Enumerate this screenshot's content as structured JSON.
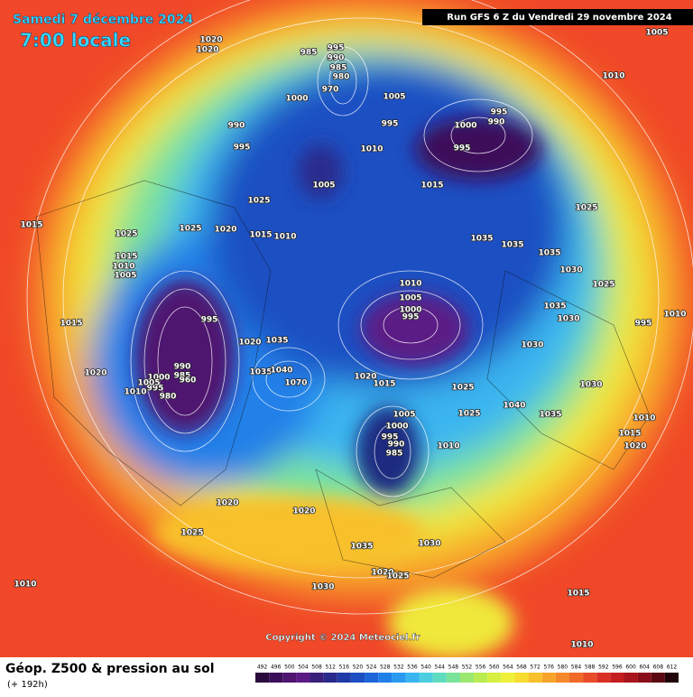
{
  "header": {
    "date": "Samedi 7 décembre 2024",
    "time": "7:00 locale",
    "run": "Run GFS 6 Z du Vendredi 29 novembre 2024"
  },
  "map": {
    "isobar_labels": [
      1020,
      1020,
      1005,
      985,
      995,
      990,
      985,
      980,
      970,
      1010,
      1000,
      1005,
      990,
      995,
      995,
      990,
      995,
      1000,
      1010,
      995,
      1005,
      1015,
      1025,
      1025,
      1015,
      1025,
      1025,
      1020,
      1015,
      1010,
      1035,
      1035,
      1035,
      1015,
      1010,
      1005,
      1030,
      1010,
      1025,
      1005,
      1000,
      995,
      1035,
      1030,
      995,
      1015,
      995,
      1010,
      1020,
      1035,
      1030,
      1020,
      1020,
      1015,
      1035,
      1040,
      990,
      985,
      960,
      1000,
      995,
      1005,
      1010,
      980,
      1070,
      1030,
      1025,
      1040,
      1025,
      1035,
      1005,
      1000,
      1010,
      995,
      990,
      985,
      1010,
      1015,
      1020,
      1020,
      1020,
      1025,
      1035,
      1030,
      1020,
      1025,
      1010,
      1030,
      1015,
      1010
    ],
    "copyright": "Copyright © 2024 Meteociel.fr"
  },
  "footer": {
    "title": "Géop. Z500 & pression au sol",
    "lead": "(+ 192h)"
  },
  "legend": {
    "levels": [
      492,
      496,
      500,
      504,
      508,
      512,
      516,
      520,
      524,
      528,
      532,
      536,
      540,
      544,
      548,
      552,
      556,
      560,
      564,
      568,
      572,
      576,
      580,
      584,
      588,
      592,
      596,
      600,
      604,
      608,
      612
    ],
    "colors": [
      "#2b0a3d",
      "#3d0f5a",
      "#4f1470",
      "#5c1a85",
      "#3a1f7a",
      "#2a2a8c",
      "#1f3aa6",
      "#1e4fc2",
      "#1e66d8",
      "#2080e8",
      "#2a9af0",
      "#3ab5f0",
      "#4ccde0",
      "#5fdcc0",
      "#7ae39a",
      "#9ae870",
      "#b8ec50",
      "#d6ef40",
      "#eef03a",
      "#f8dc30",
      "#f8c02a",
      "#f8a42a",
      "#f5882a",
      "#f06a2a",
      "#e84c28",
      "#d83024",
      "#c41e20",
      "#a8141c",
      "#8a0c18",
      "#5c0812",
      "#200408"
    ]
  }
}
